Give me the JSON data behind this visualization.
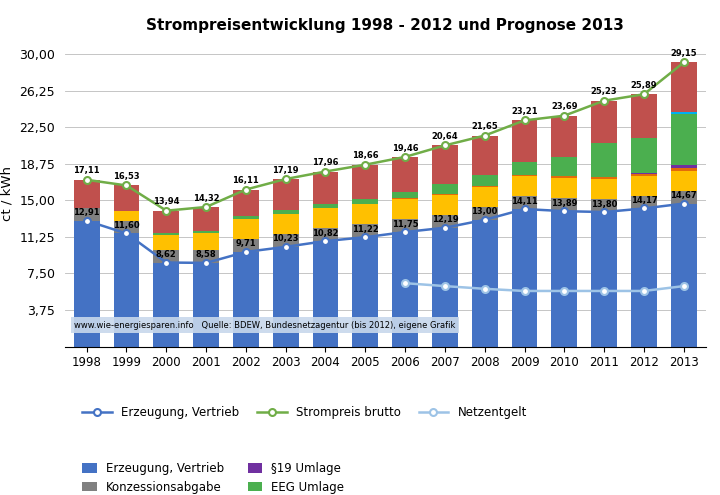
{
  "title": "Strompreisentwicklung 1998 - 2012 und Prognose 2013",
  "ylabel": "ct / kWh",
  "years": [
    1998,
    1999,
    2000,
    2001,
    2002,
    2003,
    2004,
    2005,
    2006,
    2007,
    2008,
    2009,
    2010,
    2011,
    2012,
    2013
  ],
  "yticks": [
    0,
    3.75,
    7.5,
    11.25,
    15.0,
    18.75,
    22.5,
    26.25,
    30.0
  ],
  "ytick_labels": [
    "",
    "3,75",
    "7,50",
    "11,25",
    "15,00",
    "18,75",
    "22,50",
    "26,25",
    "30,00"
  ],
  "bar_components": {
    "Erzeugung, Vertrieb": {
      "color": "#4472C4",
      "values": [
        12.91,
        11.6,
        8.62,
        8.58,
        9.71,
        10.23,
        10.82,
        11.22,
        11.75,
        12.19,
        13.0,
        14.11,
        13.89,
        13.8,
        14.17,
        14.67
      ]
    },
    "Konzessionsabgabe": {
      "color": "#808080",
      "values": [
        1.32,
        1.32,
        1.32,
        1.32,
        1.32,
        1.32,
        1.32,
        1.32,
        1.32,
        1.32,
        1.32,
        1.32,
        1.32,
        1.32,
        1.32,
        1.32
      ]
    },
    "Stromsteuer": {
      "color": "#FFC000",
      "values": [
        0.0,
        1.02,
        1.53,
        1.79,
        2.05,
        2.05,
        2.05,
        2.05,
        2.05,
        2.05,
        2.05,
        2.05,
        2.05,
        2.05,
        2.05,
        2.05
      ]
    },
    "KWK Umlage": {
      "color": "#E36C09",
      "values": [
        0.0,
        0.0,
        0.0,
        0.0,
        0.0,
        0.0,
        0.0,
        0.0,
        0.1,
        0.1,
        0.1,
        0.1,
        0.19,
        0.19,
        0.19,
        0.3
      ]
    },
    "§19 Umlage": {
      "color": "#7030A0",
      "values": [
        0.0,
        0.0,
        0.0,
        0.0,
        0.0,
        0.0,
        0.0,
        0.0,
        0.0,
        0.0,
        0.0,
        0.0,
        0.0,
        0.0,
        0.1,
        0.25
      ]
    },
    "EEG Umlage": {
      "color": "#4BAF4F",
      "values": [
        0.0,
        0.0,
        0.18,
        0.18,
        0.27,
        0.41,
        0.45,
        0.54,
        0.67,
        1.03,
        1.1,
        1.32,
        2.05,
        3.53,
        3.59,
        5.28
      ]
    },
    "Offshore Umlage": {
      "color": "#00B0F0",
      "values": [
        0.0,
        0.0,
        0.0,
        0.0,
        0.0,
        0.0,
        0.0,
        0.0,
        0.0,
        0.0,
        0.0,
        0.0,
        0.0,
        0.0,
        0.0,
        0.25
      ]
    },
    "Umsatzsteuer": {
      "color": "#C0504D",
      "values": [
        2.88,
        2.59,
        2.29,
        2.45,
        2.76,
        3.18,
        3.32,
        3.53,
        3.57,
        3.95,
        4.08,
        4.31,
        4.19,
        4.34,
        4.47,
        5.03
      ]
    }
  },
  "line_erzvertrieb": {
    "label": "Erzeugung, Vertrieb",
    "color": "#4472C4",
    "values": [
      12.91,
      11.6,
      8.62,
      8.58,
      9.71,
      10.23,
      10.82,
      11.22,
      11.75,
      12.19,
      13.0,
      14.11,
      13.89,
      13.8,
      14.17,
      14.67
    ]
  },
  "line_brutto": {
    "label": "Strompreis brutto",
    "color": "#70AD47",
    "values": [
      17.11,
      16.53,
      13.94,
      14.32,
      16.11,
      17.19,
      17.96,
      18.66,
      19.46,
      20.64,
      21.65,
      23.21,
      23.69,
      25.23,
      25.89,
      29.15
    ]
  },
  "line_netz": {
    "label": "Netzentgelt",
    "color": "#9DC3E6",
    "values": [
      null,
      null,
      null,
      null,
      null,
      null,
      null,
      null,
      6.5,
      6.2,
      5.92,
      5.7,
      5.7,
      5.7,
      5.7,
      6.2
    ]
  },
  "source_text": "www.wie-energiesparen.info   Quelle: BDEW, Bundesnetzagentur (bis 2012), eigene Grafik"
}
